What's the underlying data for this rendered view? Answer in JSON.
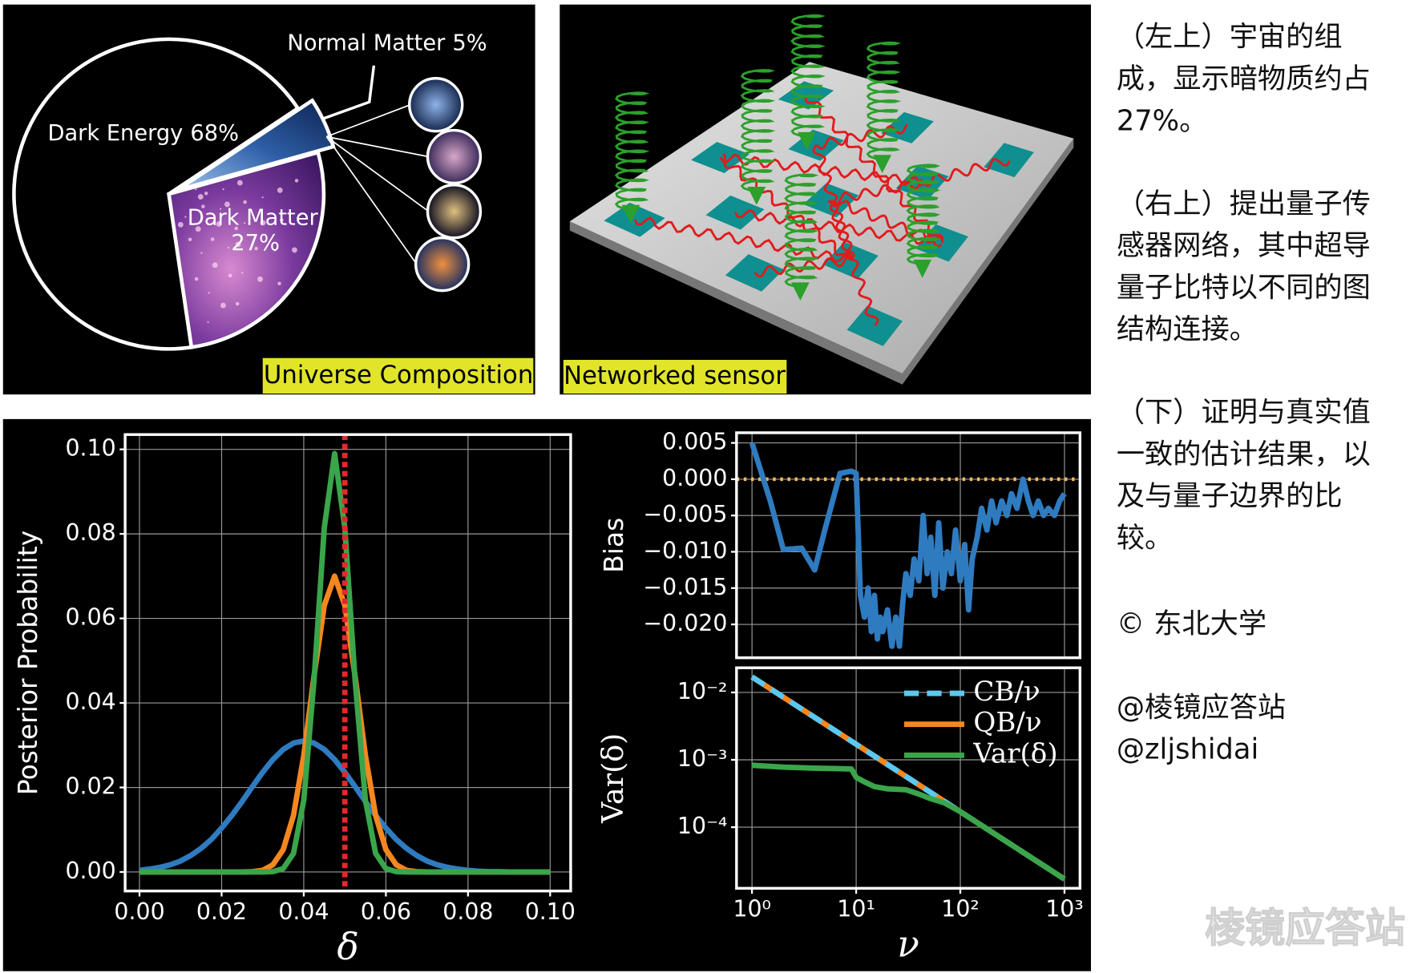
{
  "chart_data": [
    {
      "type": "pie",
      "title": "Universe Composition",
      "categories": [
        "Dark Energy",
        "Dark Matter",
        "Normal Matter"
      ],
      "values": [
        68,
        27,
        5
      ],
      "value_labels": [
        "68%",
        "27%",
        "5%"
      ],
      "colors": [
        "#000000",
        "#7a3a9e",
        "#2f5fa8"
      ]
    },
    {
      "type": "line",
      "xlabel": "δ",
      "ylabel": "Posterior Probability",
      "x": [
        0,
        0.0025,
        0.005,
        0.0075,
        0.01,
        0.0125,
        0.015,
        0.0175,
        0.02,
        0.0225,
        0.025,
        0.0275,
        0.03,
        0.0325,
        0.035,
        0.0375,
        0.04,
        0.0425,
        0.045,
        0.0475,
        0.05,
        0.0525,
        0.055,
        0.0575,
        0.06,
        0.0625,
        0.065,
        0.0675,
        0.07,
        0.0725,
        0.075,
        0.0775,
        0.08,
        0.0825,
        0.085,
        0.0875,
        0.09,
        0.0925,
        0.095,
        0.0975,
        0.1
      ],
      "series": [
        {
          "color": "#2f7bc0",
          "values": [
            0.0004,
            0.0007,
            0.0011,
            0.0017,
            0.0026,
            0.0039,
            0.0056,
            0.0077,
            0.0104,
            0.0134,
            0.0167,
            0.0202,
            0.0236,
            0.0266,
            0.029,
            0.0305,
            0.031,
            0.0305,
            0.029,
            0.0266,
            0.0236,
            0.0202,
            0.0167,
            0.0134,
            0.0104,
            0.0077,
            0.0056,
            0.0039,
            0.0026,
            0.0017,
            0.0011,
            0.0007,
            0.0004,
            0.0002,
            0.0001,
            0.0001,
            0,
            0,
            0,
            0,
            0
          ]
        },
        {
          "color": "#f5871f",
          "values": [
            0,
            0,
            0,
            0,
            0,
            0,
            0,
            0,
            0,
            0,
            0,
            0.0001,
            0.0004,
            0.0017,
            0.0053,
            0.0134,
            0.0276,
            0.0463,
            0.0631,
            0.07,
            0.0631,
            0.0463,
            0.0276,
            0.0134,
            0.0053,
            0.0017,
            0.0004,
            0.0001,
            0,
            0,
            0,
            0,
            0,
            0,
            0,
            0,
            0,
            0,
            0,
            0,
            0
          ]
        },
        {
          "color": "#3aa54a",
          "values": [
            0,
            0,
            0,
            0,
            0,
            0,
            0,
            0,
            0,
            0,
            0,
            0,
            0,
            0.0001,
            0.0008,
            0.0044,
            0.017,
            0.0453,
            0.0815,
            0.099,
            0.0815,
            0.0453,
            0.017,
            0.0044,
            0.0008,
            0.0001,
            0,
            0,
            0,
            0,
            0,
            0,
            0,
            0,
            0,
            0,
            0,
            0,
            0,
            0,
            0
          ]
        }
      ],
      "vlines": [
        0.05
      ],
      "vline_color": "#e8262b",
      "xlim": [
        -0.0035,
        0.105
      ],
      "ylim": [
        -0.0045,
        0.1035
      ],
      "xticks": [
        {
          "value": 0,
          "label": "0.00"
        },
        {
          "value": 0.02,
          "label": "0.02"
        },
        {
          "value": 0.04,
          "label": "0.04"
        },
        {
          "value": 0.06,
          "label": "0.06"
        },
        {
          "value": 0.08,
          "label": "0.08"
        },
        {
          "value": 0.1,
          "label": "0.10"
        }
      ],
      "yticks": [
        {
          "value": 0,
          "label": "0.00"
        },
        {
          "value": 0.02,
          "label": "0.02"
        },
        {
          "value": 0.04,
          "label": "0.04"
        },
        {
          "value": 0.06,
          "label": "0.06"
        },
        {
          "value": 0.08,
          "label": "0.08"
        },
        {
          "value": 0.1,
          "label": "0.10"
        }
      ],
      "grid": true
    },
    {
      "type": "line",
      "ylabel": "Bias",
      "xscale": "log",
      "x": [
        1,
        1.5,
        2,
        3,
        4,
        5,
        7,
        9,
        10,
        11,
        12,
        13,
        14,
        15,
        16,
        17,
        18,
        20,
        22,
        24,
        26,
        28,
        30,
        33,
        36,
        40,
        44,
        48,
        52,
        57,
        62,
        68,
        75,
        82,
        90,
        100,
        110,
        120,
        130,
        145,
        160,
        180,
        200,
        220,
        250,
        280,
        310,
        350,
        400,
        450,
        500,
        560,
        630,
        700,
        800,
        900,
        1000
      ],
      "series": [
        {
          "color": "#2f7bc0",
          "values": [
            0.005,
            -0.003,
            -0.0097,
            -0.0095,
            -0.0125,
            -0.007,
            0.0008,
            0.0011,
            0.0008,
            -0.016,
            -0.019,
            -0.015,
            -0.021,
            -0.016,
            -0.022,
            -0.019,
            -0.021,
            -0.018,
            -0.023,
            -0.019,
            -0.023,
            -0.017,
            -0.013,
            -0.016,
            -0.011,
            -0.014,
            -0.005,
            -0.013,
            -0.008,
            -0.016,
            -0.006,
            -0.015,
            -0.01,
            -0.013,
            -0.007,
            -0.014,
            -0.009,
            -0.018,
            -0.011,
            -0.008,
            -0.004,
            -0.007,
            -0.003,
            -0.006,
            -0.003,
            -0.005,
            -0.002,
            -0.004,
            0,
            -0.003,
            -0.005,
            -0.003,
            -0.005,
            -0.004,
            -0.005,
            -0.003,
            -0.002
          ]
        }
      ],
      "hlines": [
        0
      ],
      "hline_color": "#f5b95a",
      "xlim": [
        0.71,
        1410
      ],
      "ylim": [
        -0.0246,
        0.0064
      ],
      "yticks": [
        {
          "value": 0.005,
          "label": "0.005"
        },
        {
          "value": 0,
          "label": "0.000"
        },
        {
          "value": -0.005,
          "label": "−0.005"
        },
        {
          "value": -0.01,
          "label": "−0.010"
        },
        {
          "value": -0.015,
          "label": "−0.015"
        },
        {
          "value": -0.02,
          "label": "−0.020"
        }
      ],
      "grid": true
    },
    {
      "type": "line",
      "xlabel": "ν",
      "ylabel": "Var(δ)",
      "xscale": "log",
      "yscale": "log",
      "legend": "upper right",
      "series": [
        {
          "name": "CB/ν",
          "color": "#5bc8f0",
          "dashed": true,
          "x": [
            1,
            10,
            100,
            1000
          ],
          "values": [
            0.017,
            0.0017,
            0.00017,
            1.7e-05
          ]
        },
        {
          "name": "QB/ν",
          "color": "#f5871f",
          "x": [
            1,
            10,
            100,
            1000
          ],
          "values": [
            0.017,
            0.0017,
            0.00017,
            1.7e-05
          ]
        },
        {
          "name": "Var(δ)",
          "color": "#3aa54a",
          "x": [
            1,
            2,
            4,
            7,
            9,
            10,
            12,
            15,
            20,
            30,
            40,
            50,
            70,
            100,
            200,
            500,
            1000
          ],
          "values": [
            0.00083,
            0.00078,
            0.00075,
            0.00074,
            0.00073,
            0.00055,
            0.00047,
            0.0004,
            0.00037,
            0.00036,
            0.00031,
            0.00027,
            0.00023,
            0.00017,
            8.5e-05,
            3.4e-05,
            1.7e-05
          ]
        }
      ],
      "xlim": [
        0.71,
        1410
      ],
      "ylim": [
        1.24e-05,
        0.0232
      ],
      "xticks": [
        {
          "value": 1,
          "label": "10⁰"
        },
        {
          "value": 10,
          "label": "10¹"
        },
        {
          "value": 100,
          "label": "10²"
        },
        {
          "value": 1000,
          "label": "10³"
        }
      ],
      "yticks": [
        {
          "value": 0.01,
          "label": "10⁻²"
        },
        {
          "value": 0.001,
          "label": "10⁻³"
        },
        {
          "value": 0.0001,
          "label": "10⁻⁴"
        }
      ],
      "grid": true
    }
  ],
  "diagram": {
    "label": "Networked sensor"
  },
  "caption": {
    "paragraphs": [
      [
        "（左上）宇宙的组",
        "成，显示暗物质约占",
        "27%。"
      ],
      [
        "（右上）提出量子传",
        "感器网络，其中超导",
        "量子比特以不同的图",
        "结构连接。"
      ],
      [
        "（下）证明与真实值",
        "一致的估计结果，以",
        "及与量子边界的比",
        "较。"
      ]
    ],
    "copyright": "© 东北大学",
    "credits": [
      "@棱镜应答站",
      "@zljshidai"
    ]
  },
  "watermark": "棱镜应答站"
}
